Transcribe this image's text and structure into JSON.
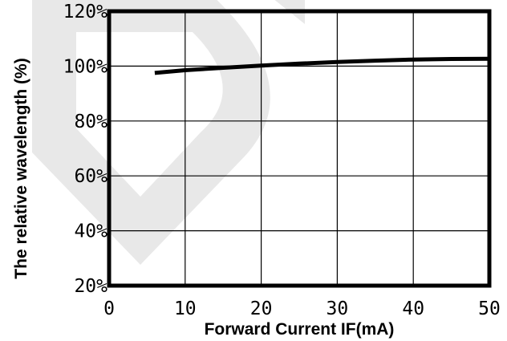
{
  "chart_data": {
    "type": "line",
    "title": "",
    "xlabel": "Forward Current IF(mA)",
    "ylabel": "The relative wavelength (%)",
    "xlim": [
      0,
      50
    ],
    "ylim": [
      20,
      120
    ],
    "x_ticks": [
      0,
      10,
      20,
      30,
      40,
      50
    ],
    "y_ticks": [
      20,
      40,
      60,
      80,
      100,
      120
    ],
    "x_tick_labels": [
      "0",
      "10",
      "20",
      "30",
      "40",
      "50"
    ],
    "y_tick_labels": [
      "20%",
      "40%",
      "60%",
      "80%",
      "100%",
      "120%"
    ],
    "grid": true,
    "series": [
      {
        "x": [
          6,
          10,
          15,
          20,
          25,
          30,
          35,
          40,
          45,
          50
        ],
        "y": [
          97.5,
          98.5,
          99.4,
          100.2,
          100.9,
          101.5,
          102.0,
          102.4,
          102.6,
          102.7
        ]
      }
    ],
    "colors": {
      "line": "#000000",
      "grid": "#000000",
      "background": "#ffffff",
      "watermark": "#e6e6e6"
    }
  }
}
